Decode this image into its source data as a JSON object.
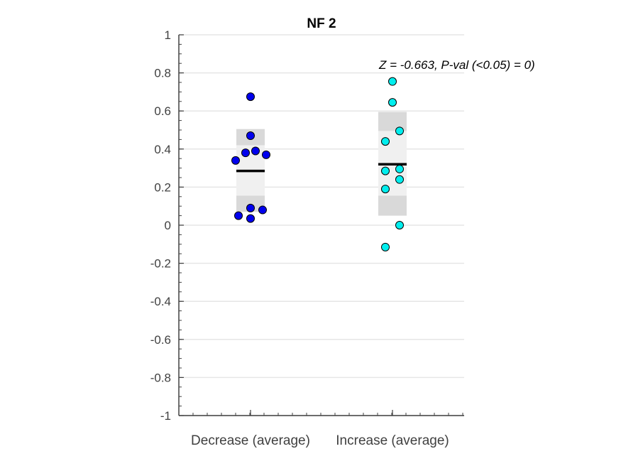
{
  "chart_data": {
    "type": "scatter",
    "title": "NF 2",
    "categories": [
      "Decrease (average)",
      "Increase (average)"
    ],
    "ylim": [
      -1,
      1
    ],
    "yticks": [
      -1,
      -0.8,
      -0.6,
      -0.4,
      -0.2,
      0,
      0.2,
      0.4,
      0.6,
      0.8,
      1
    ],
    "ytick_labels": [
      "-1",
      "-0.8",
      "-0.6",
      "-0.4",
      "-0.2",
      "0",
      "0.2",
      "0.4",
      "0.6",
      "0.8",
      "1"
    ],
    "grid": true,
    "annotation": "Z = -0.663, P-val (<0.05) = 0)",
    "groups": [
      {
        "category": "Decrease (average)",
        "color": "#0000ee",
        "mean": 0.285,
        "box_outer": [
          0.07,
          0.505
        ],
        "box_inner": [
          0.155,
          0.42
        ],
        "points": [
          {
            "jitter": 0,
            "y": 0.675
          },
          {
            "jitter": 0,
            "y": 0.47
          },
          {
            "jitter": -0.35,
            "y": 0.38
          },
          {
            "jitter": 0.35,
            "y": 0.39
          },
          {
            "jitter": -1.05,
            "y": 0.34
          },
          {
            "jitter": 1.1,
            "y": 0.37
          },
          {
            "jitter": 0,
            "y": 0.09
          },
          {
            "jitter": 0.85,
            "y": 0.08
          },
          {
            "jitter": -0.85,
            "y": 0.05
          },
          {
            "jitter": 0,
            "y": 0.035
          }
        ]
      },
      {
        "category": "Increase (average)",
        "color": "#00eeee",
        "mean": 0.32,
        "box_outer": [
          0.05,
          0.595
        ],
        "box_inner": [
          0.155,
          0.495
        ],
        "points": [
          {
            "jitter": 0,
            "y": 0.755
          },
          {
            "jitter": 0,
            "y": 0.645
          },
          {
            "jitter": 0.5,
            "y": 0.495
          },
          {
            "jitter": -0.5,
            "y": 0.44
          },
          {
            "jitter": 0.5,
            "y": 0.295
          },
          {
            "jitter": -0.5,
            "y": 0.285
          },
          {
            "jitter": 0.5,
            "y": 0.24
          },
          {
            "jitter": -0.5,
            "y": 0.19
          },
          {
            "jitter": 0.5,
            "y": 0.0
          },
          {
            "jitter": -0.5,
            "y": -0.115
          }
        ]
      }
    ]
  }
}
